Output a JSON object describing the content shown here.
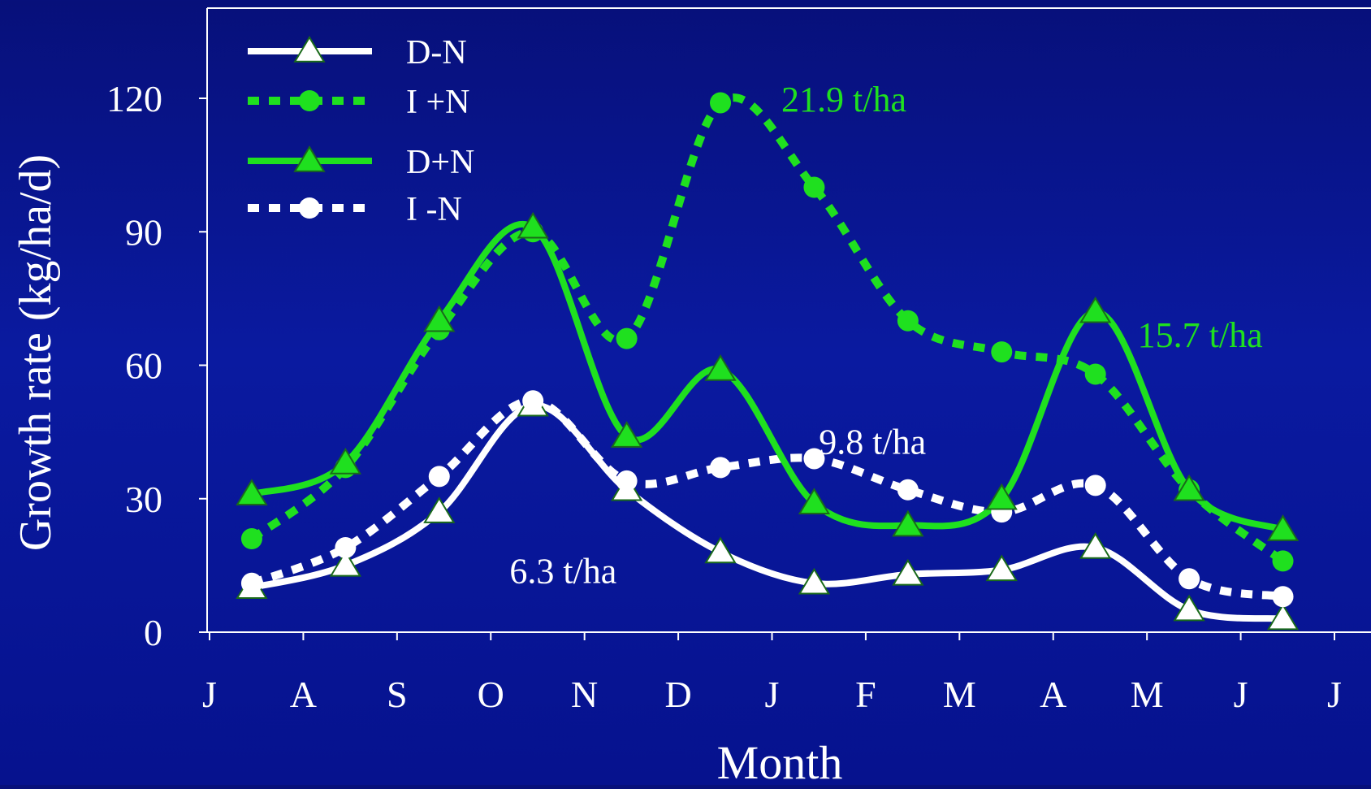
{
  "chart_data": {
    "type": "line",
    "ylabel": "Growth rate (kg/ha/d)",
    "xlabel": "Month",
    "ylim": [
      0,
      120
    ],
    "yticks": [
      0,
      30,
      60,
      90,
      120
    ],
    "xlim": [
      0,
      12
    ],
    "month_ticks": [
      "J",
      "A",
      "S",
      "O",
      "N",
      "D",
      "J",
      "F",
      "M",
      "A",
      "M",
      "J",
      "J"
    ],
    "grid": false,
    "legend_position": "top-left",
    "colors": {
      "white": "#ffffff",
      "green": "#1fe01f",
      "background_top": "#07107a",
      "background_bottom": "#06128e"
    },
    "series": [
      {
        "name": "D-N",
        "color": "#ffffff",
        "line_style": "solid",
        "marker": "triangle",
        "x": [
          0.45,
          1.45,
          2.45,
          3.45,
          4.45,
          5.45,
          6.45,
          7.45,
          8.45,
          9.45,
          10.45,
          11.45
        ],
        "values": [
          10,
          15,
          27,
          51,
          32,
          18,
          11,
          13,
          14,
          19,
          5,
          3
        ]
      },
      {
        "name": "I +N",
        "color": "#1fe01f",
        "line_style": "dotted",
        "marker": "circle",
        "x": [
          0.45,
          1.45,
          2.45,
          3.45,
          4.45,
          5.45,
          6.45,
          7.45,
          8.45,
          9.45,
          10.45,
          11.45
        ],
        "values": [
          21,
          37,
          68,
          90,
          66,
          119,
          100,
          70,
          63,
          58,
          32,
          16
        ]
      },
      {
        "name": "D+N",
        "color": "#1fe01f",
        "line_style": "solid",
        "marker": "triangle",
        "x": [
          0.45,
          1.45,
          2.45,
          3.45,
          4.45,
          5.45,
          6.45,
          7.45,
          8.45,
          9.45,
          10.45,
          11.45
        ],
        "values": [
          31,
          38,
          70,
          91,
          44,
          59,
          29,
          24,
          30,
          72,
          32,
          23
        ]
      },
      {
        "name": "I -N",
        "color": "#ffffff",
        "line_style": "dotted",
        "marker": "circle",
        "x": [
          0.45,
          1.45,
          2.45,
          3.45,
          4.45,
          5.45,
          6.45,
          7.45,
          8.45,
          9.45,
          10.45,
          11.45
        ],
        "values": [
          11,
          19,
          35,
          52,
          34,
          37,
          39,
          32,
          27,
          33,
          12,
          8
        ]
      }
    ],
    "annotations": [
      {
        "text": "21.9 t/ha",
        "color": "#1fe01f",
        "x": 6.1,
        "y": 120
      },
      {
        "text": "15.7 t/ha",
        "color": "#1fe01f",
        "x": 9.9,
        "y": 67
      },
      {
        "text": "9.8  t/ha",
        "color": "#ffffff",
        "x": 6.5,
        "y": 43
      },
      {
        "text": "6.3 t/ha",
        "color": "#ffffff",
        "x": 3.2,
        "y": 14
      }
    ]
  }
}
